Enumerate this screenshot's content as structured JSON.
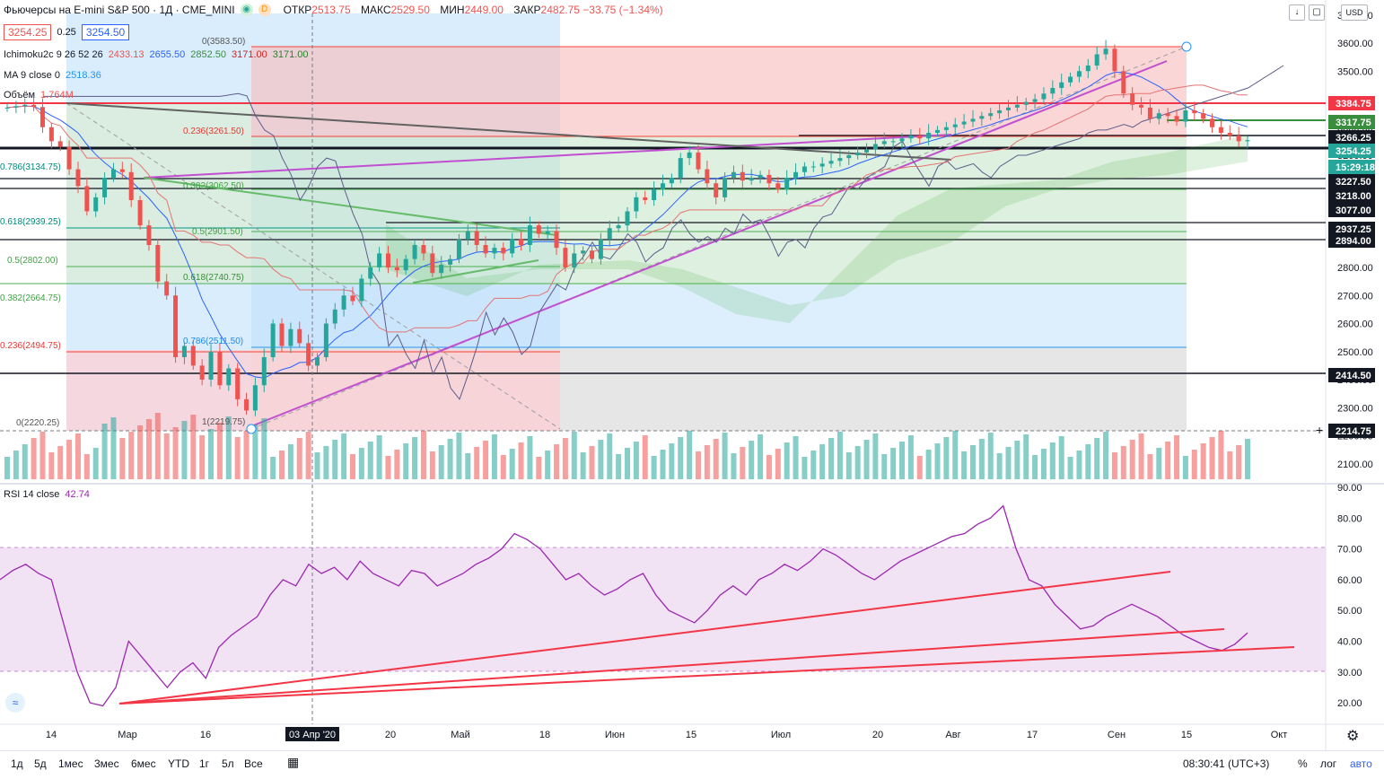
{
  "header": {
    "symbol": "Фьючерсы на E-mini S&P 500 · 1Д · CME_MINI",
    "dot1": "◉",
    "dot2": "D",
    "open_label": "ОТКР",
    "open": "2513.75",
    "high_label": "МАКС",
    "high": "2529.50",
    "low_label": "МИН",
    "low": "2449.00",
    "close_label": "ЗАКР",
    "close": "2482.75 −33.75 (−1.34%)"
  },
  "quote": {
    "bid": "3254.25",
    "spread": "0.25",
    "ask": "3254.50"
  },
  "indicators": {
    "ichimoku_label": "Ichimoku2c 9 26 52 26",
    "ichimoku_values": [
      "2433.13",
      "2655.50",
      "2852.50",
      "3171.00",
      "3171.00"
    ],
    "ma_label": "MA 9 close 0",
    "ma_value": "2518.36",
    "volume_label": "Объём",
    "volume_value": "1.764M",
    "rsi_label": "RSI 14 close",
    "rsi_value": "42.74"
  },
  "fib_labels": {
    "top": "0(3583.50)",
    "f236": "0.236(3261.50)",
    "f382": "0.382(3062.50)",
    "f5": "0.5(2901.50)",
    "f618": "0.618(2740.75)",
    "f786": "0.786(2511.50)",
    "f1": "1(2219.75)",
    "left_786": "0.786(3134.75)",
    "left_618": "0.618(2939.25)",
    "left_5": "0.5(2802.00)",
    "left_382": "0.382(2664.75)",
    "left_236": "0.236(2494.75)",
    "left_0": "0(2220.25)"
  },
  "price_axis": {
    "currency": "USD",
    "ticks": [
      "3700.00",
      "3600.00",
      "3500.00",
      "3400.00",
      "3300.00",
      "3200.00",
      "3100.00",
      "3000.00",
      "2900.00",
      "2800.00",
      "2700.00",
      "2600.00",
      "2500.00",
      "2400.00",
      "2300.00",
      "2200.00",
      "2100.00"
    ],
    "badges": [
      {
        "text": "3384.75",
        "color": "#f23645"
      },
      {
        "text": "3317.75",
        "color": "#388e3c"
      },
      {
        "text": "3266.25",
        "color": "#131722"
      },
      {
        "text": "3254.25",
        "color": "#26a69a"
      },
      {
        "text": "15:29:18",
        "color": "#26a69a"
      },
      {
        "text": "3227.50",
        "color": "#131722"
      },
      {
        "text": "3218.00",
        "color": "#131722"
      },
      {
        "text": "3077.00",
        "color": "#131722"
      },
      {
        "text": "2937.25",
        "color": "#131722"
      },
      {
        "text": "2894.00",
        "color": "#131722"
      },
      {
        "text": "2414.50",
        "color": "#131722"
      },
      {
        "text": "2214.75",
        "color": "#131722"
      }
    ]
  },
  "rsi_axis": {
    "ticks": [
      "90.00",
      "80.00",
      "70.00",
      "60.00",
      "50.00",
      "40.00",
      "30.00",
      "20.00"
    ]
  },
  "time_axis": {
    "labels": [
      "14",
      "Мар",
      "16",
      "03 Апр '20",
      "20",
      "Май",
      "18",
      "Июн",
      "15",
      "Июл",
      "20",
      "Авг",
      "17",
      "Сен",
      "15",
      "Окт"
    ]
  },
  "toolbar": {
    "timeframes": [
      "1д",
      "5д",
      "1мес",
      "3мес",
      "6мес",
      "YTD",
      "1г",
      "5л",
      "Все"
    ],
    "clock": "08:30:41 (UTC+3)",
    "percent": "%",
    "log": "лог",
    "auto": "авто"
  },
  "colors": {
    "up": "#26a69a",
    "down": "#ef5350",
    "rsi": "#9c27b0",
    "trend": "#f23645",
    "fib_red": "#f44336",
    "fib_green": "#4caf50",
    "fib_blue": "#2196f3"
  }
}
